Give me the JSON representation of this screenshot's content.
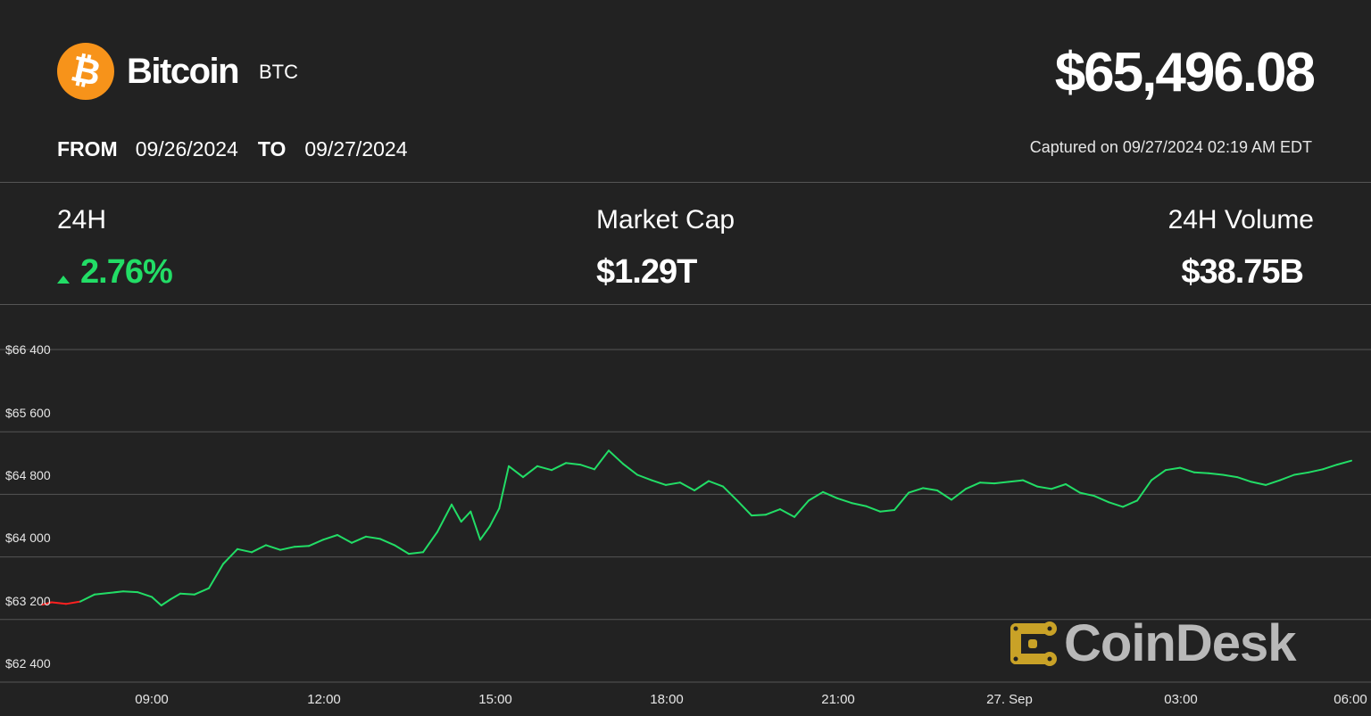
{
  "header": {
    "coin_name": "Bitcoin",
    "ticker": "BTC",
    "logo_symbol": "₿",
    "price": "$65,496.08",
    "from_label": "FROM",
    "from_date": "09/26/2024",
    "to_label": "TO",
    "to_date": "09/27/2024",
    "captured": "Captured on 09/27/2024 02:19 AM EDT"
  },
  "stats": {
    "change_label": "24H",
    "change_value": "2.76%",
    "market_cap_label": "Market Cap",
    "market_cap_value": "$1.29T",
    "volume_label": "24H Volume",
    "volume_value": "$38.75B"
  },
  "watermark": {
    "text": "CoinDesk",
    "icon": "coindesk-logo-icon"
  },
  "colors": {
    "background": "#222222",
    "up": "#22dd66",
    "down": "#ff2020",
    "bitcoin_orange": "#f7931a",
    "watermark_gold": "#c9a227",
    "gridline": "#555555"
  },
  "chart_data": {
    "type": "line",
    "title": "",
    "xlabel": "",
    "ylabel": "",
    "ylim": [
      62400,
      66400
    ],
    "y_ticks": [
      66400,
      65600,
      64800,
      64000,
      63200,
      62400
    ],
    "y_tick_labels": [
      "$66 400",
      "$65 600",
      "$64 800",
      "$64 000",
      "$63 200",
      "$62 400"
    ],
    "x_range": [
      "2024-09-26 07:05",
      "2024-09-27 06:00"
    ],
    "x_ticks": [
      "2024-09-26 09:00",
      "2024-09-26 12:00",
      "2024-09-26 15:00",
      "2024-09-26 18:00",
      "2024-09-26 21:00",
      "2024-09-27 00:00",
      "2024-09-27 03:00",
      "2024-09-27 06:00"
    ],
    "x_tick_labels": [
      "09:00",
      "12:00",
      "15:00",
      "18:00",
      "21:00",
      "27. Sep",
      "03:00",
      "06:00"
    ],
    "grid": true,
    "reference_price": 63420,
    "series": [
      {
        "x": [
          "2024-09-26 07:05",
          "2024-09-26 07:15",
          "2024-09-26 07:30",
          "2024-09-26 07:45",
          "2024-09-26 08:00",
          "2024-09-26 08:15",
          "2024-09-26 08:30",
          "2024-09-26 08:45",
          "2024-09-26 09:00",
          "2024-09-26 09:10",
          "2024-09-26 09:20",
          "2024-09-26 09:30",
          "2024-09-26 09:45",
          "2024-09-26 10:00",
          "2024-09-26 10:15",
          "2024-09-26 10:30",
          "2024-09-26 10:45",
          "2024-09-26 11:00",
          "2024-09-26 11:15",
          "2024-09-26 11:30",
          "2024-09-26 11:45",
          "2024-09-26 12:00",
          "2024-09-26 12:15",
          "2024-09-26 12:30",
          "2024-09-26 12:45",
          "2024-09-26 13:00",
          "2024-09-26 13:15",
          "2024-09-26 13:30",
          "2024-09-26 13:45",
          "2024-09-26 14:00",
          "2024-09-26 14:15",
          "2024-09-26 14:25",
          "2024-09-26 14:35",
          "2024-09-26 14:45",
          "2024-09-26 14:55",
          "2024-09-26 15:05",
          "2024-09-26 15:15",
          "2024-09-26 15:30",
          "2024-09-26 15:45",
          "2024-09-26 16:00",
          "2024-09-26 16:15",
          "2024-09-26 16:30",
          "2024-09-26 16:45",
          "2024-09-26 17:00",
          "2024-09-26 17:15",
          "2024-09-26 17:30",
          "2024-09-26 17:45",
          "2024-09-26 18:00",
          "2024-09-26 18:15",
          "2024-09-26 18:30",
          "2024-09-26 18:45",
          "2024-09-26 19:00",
          "2024-09-26 19:15",
          "2024-09-26 19:30",
          "2024-09-26 19:45",
          "2024-09-26 20:00",
          "2024-09-26 20:15",
          "2024-09-26 20:30",
          "2024-09-26 20:45",
          "2024-09-26 21:00",
          "2024-09-26 21:15",
          "2024-09-26 21:30",
          "2024-09-26 21:45",
          "2024-09-26 22:00",
          "2024-09-26 22:15",
          "2024-09-26 22:30",
          "2024-09-26 22:45",
          "2024-09-26 23:00",
          "2024-09-26 23:15",
          "2024-09-26 23:30",
          "2024-09-26 23:45",
          "2024-09-27 00:00",
          "2024-09-27 00:15",
          "2024-09-27 00:30",
          "2024-09-27 00:45",
          "2024-09-27 01:00",
          "2024-09-27 01:15",
          "2024-09-27 01:30",
          "2024-09-27 01:45",
          "2024-09-27 02:00",
          "2024-09-27 02:15",
          "2024-09-27 02:30",
          "2024-09-27 02:45",
          "2024-09-27 03:00",
          "2024-09-27 03:15",
          "2024-09-27 03:30",
          "2024-09-27 03:45",
          "2024-09-27 04:00",
          "2024-09-27 04:15",
          "2024-09-27 04:30",
          "2024-09-27 04:45",
          "2024-09-27 05:00",
          "2024-09-27 05:15",
          "2024-09-27 05:30",
          "2024-09-27 05:45",
          "2024-09-27 06:00"
        ],
        "values": [
          63390,
          63420,
          63400,
          63430,
          63520,
          63540,
          63560,
          63550,
          63490,
          63380,
          63460,
          63530,
          63520,
          63600,
          63910,
          64100,
          64060,
          64150,
          64090,
          64130,
          64140,
          64220,
          64280,
          64180,
          64260,
          64230,
          64150,
          64040,
          64060,
          64320,
          64670,
          64450,
          64580,
          64220,
          64390,
          64620,
          65160,
          65020,
          65160,
          65110,
          65200,
          65180,
          65120,
          65360,
          65190,
          65050,
          64980,
          64920,
          64950,
          64850,
          64970,
          64900,
          64720,
          64530,
          64540,
          64610,
          64510,
          64720,
          64830,
          64750,
          64690,
          64650,
          64580,
          64600,
          64820,
          64880,
          64850,
          64730,
          64870,
          64950,
          64940,
          64960,
          64980,
          64900,
          64870,
          64930,
          64820,
          64780,
          64700,
          64640,
          64720,
          64980,
          65110,
          65140,
          65080,
          65070,
          65050,
          65020,
          64960,
          64920,
          64980,
          65050,
          65080,
          65120,
          65180,
          65230
        ]
      }
    ]
  }
}
